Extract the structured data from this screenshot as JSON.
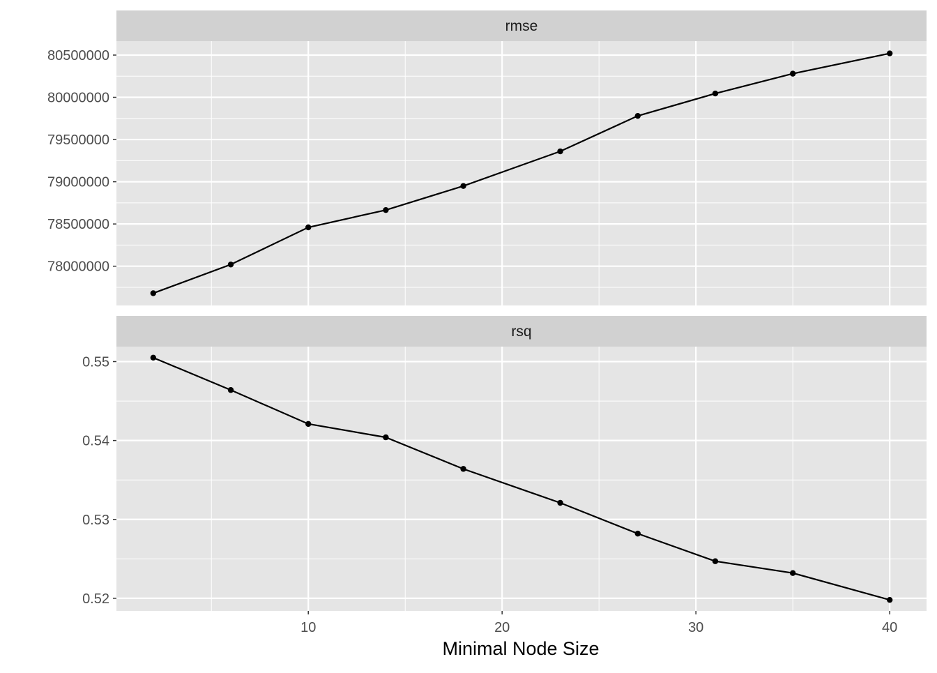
{
  "chart_data": {
    "type": "line",
    "xlabel": "Minimal Node Size",
    "ylabel": "",
    "x": [
      2,
      6,
      10,
      14,
      18,
      23,
      27,
      31,
      35,
      40
    ],
    "x_ticks": [
      10,
      20,
      30,
      40
    ],
    "x_tick_labels": [
      "10",
      "20",
      "30",
      "40"
    ],
    "xlim": [
      0.1,
      41.9
    ],
    "grid": true,
    "panels": [
      {
        "strip_label": "rmse",
        "values": [
          77680000,
          78020000,
          78460000,
          78665000,
          78950000,
          79360000,
          79780000,
          80045000,
          80280000,
          80520000
        ],
        "ylim": [
          77535000,
          80665000
        ],
        "y_ticks": [
          78000000,
          78500000,
          79000000,
          79500000,
          80000000,
          80500000
        ],
        "y_tick_labels": [
          "78000000",
          "78500000",
          "79000000",
          "79500000",
          "80000000",
          "80500000"
        ]
      },
      {
        "strip_label": "rsq",
        "values": [
          0.5505,
          0.5464,
          0.5421,
          0.5404,
          0.5364,
          0.5321,
          0.5282,
          0.5247,
          0.5232,
          0.5198
        ],
        "ylim": [
          0.5184,
          0.5519
        ],
        "y_ticks": [
          0.52,
          0.53,
          0.54,
          0.55
        ],
        "y_tick_labels": [
          "0.52",
          "0.53",
          "0.54",
          "0.55"
        ]
      }
    ],
    "colors": {
      "panel_bg": "#e5e5e5",
      "strip_bg": "#d1d1d1",
      "grid": "#ffffff",
      "line": "#000000"
    }
  }
}
